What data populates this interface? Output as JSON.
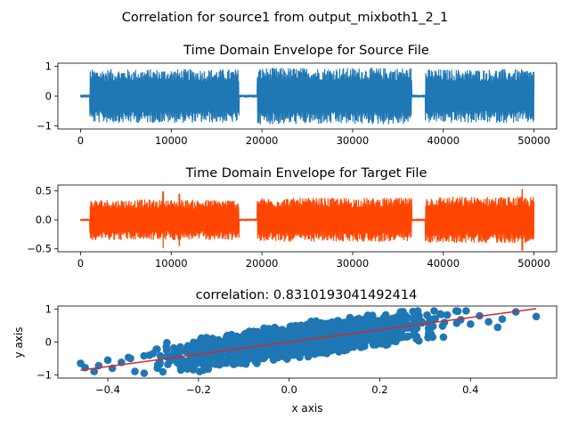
{
  "figure": {
    "suptitle": "Correlation for source1 from output_mixboth1_2_1"
  },
  "chart_data": [
    {
      "type": "line",
      "title": "Time Domain Envelope for Source File",
      "xlabel": "",
      "ylabel": "",
      "xlim": [
        -2500,
        52500
      ],
      "ylim": [
        -1.1,
        1.1
      ],
      "xticks": [
        0,
        10000,
        20000,
        30000,
        40000,
        50000
      ],
      "yticks": [
        -1,
        0,
        1
      ],
      "grid": false,
      "series": [
        {
          "color": "#1f77b4",
          "envelope_segments": [
            {
              "x_range": [
                0,
                1000
              ],
              "amplitude": 0.05
            },
            {
              "x_range": [
                1000,
                17500
              ],
              "amplitude": 0.9
            },
            {
              "x_range": [
                17500,
                19500
              ],
              "amplitude": 0.05
            },
            {
              "x_range": [
                19500,
                36500
              ],
              "amplitude": 0.95
            },
            {
              "x_range": [
                36500,
                38000
              ],
              "amplitude": 0.05
            },
            {
              "x_range": [
                38000,
                50000
              ],
              "amplitude": 0.9
            }
          ]
        }
      ]
    },
    {
      "type": "line",
      "title": "Time Domain Envelope for Target File",
      "xlabel": "",
      "ylabel": "",
      "xlim": [
        -2500,
        52500
      ],
      "ylim": [
        -0.55,
        0.6
      ],
      "xticks": [
        0,
        10000,
        20000,
        30000,
        40000,
        50000
      ],
      "yticks": [
        -0.5,
        0.0,
        0.5
      ],
      "ytick_labels": [
        "−0.5",
        "0.0",
        "0.5"
      ],
      "grid": false,
      "series": [
        {
          "color": "#ff4500",
          "envelope_segments": [
            {
              "x_range": [
                0,
                1000
              ],
              "amplitude": 0.02
            },
            {
              "x_range": [
                1000,
                17500
              ],
              "amplitude": 0.35
            },
            {
              "x_range": [
                17500,
                19500
              ],
              "amplitude": 0.02
            },
            {
              "x_range": [
                19500,
                36500
              ],
              "amplitude": 0.38
            },
            {
              "x_range": [
                36500,
                38000
              ],
              "amplitude": 0.02
            },
            {
              "x_range": [
                38000,
                50000
              ],
              "amplitude": 0.4
            }
          ],
          "peaks": [
            {
              "x": 9100,
              "y": 0.49
            },
            {
              "x": 10900,
              "y": -0.45
            },
            {
              "x": 48700,
              "y": 0.53
            }
          ]
        }
      ]
    },
    {
      "type": "scatter",
      "title": "correlation: 0.8310193041492414",
      "xlabel": "x axis",
      "ylabel": "y axis",
      "xlim": [
        -0.51,
        0.59
      ],
      "ylim": [
        -1.1,
        1.1
      ],
      "xticks": [
        -0.4,
        -0.2,
        0.0,
        0.2,
        0.4
      ],
      "xtick_labels": [
        "−0.4",
        "−0.2",
        "0.0",
        "0.2",
        "0.4"
      ],
      "yticks": [
        -1,
        0,
        1
      ],
      "ytick_labels": [
        "−1",
        "0",
        "1"
      ],
      "grid": false,
      "correlation": 0.8310193041492414,
      "scatter_color": "#1f77b4",
      "fit_color": "#d62728",
      "fit_line": {
        "x": [
          -0.46,
          0.545
        ],
        "y": [
          -0.86,
          1.02
        ]
      },
      "points": [
        [
          -0.46,
          -0.65
        ],
        [
          -0.45,
          -0.78
        ],
        [
          -0.43,
          -0.9
        ],
        [
          -0.42,
          -0.72
        ],
        [
          -0.4,
          -0.55
        ],
        [
          -0.39,
          -0.8
        ],
        [
          -0.37,
          -0.62
        ],
        [
          -0.35,
          -0.5
        ],
        [
          -0.34,
          -0.9
        ],
        [
          -0.32,
          -0.42
        ],
        [
          -0.3,
          -0.35
        ],
        [
          -0.29,
          -0.7
        ],
        [
          -0.27,
          -0.25
        ],
        [
          -0.26,
          -0.55
        ],
        [
          -0.24,
          -0.15
        ],
        [
          0.4,
          0.55
        ],
        [
          0.42,
          0.8
        ],
        [
          0.44,
          0.62
        ],
        [
          0.46,
          0.45
        ],
        [
          0.47,
          0.7
        ],
        [
          0.5,
          0.92
        ],
        [
          0.545,
          0.78
        ]
      ]
    }
  ]
}
